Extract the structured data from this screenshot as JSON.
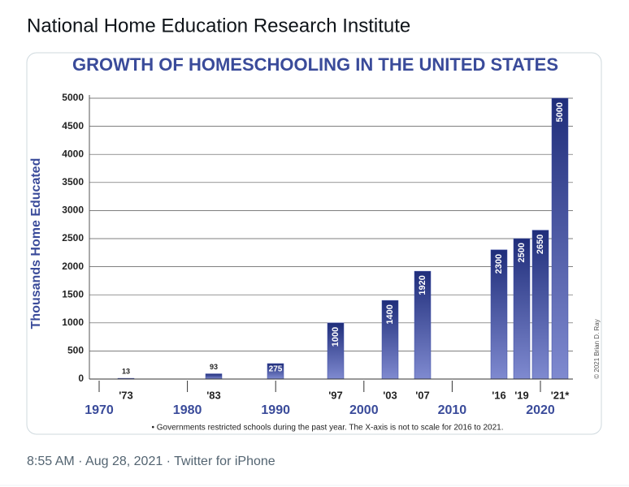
{
  "tweet": {
    "author": "National Home Education Research Institute",
    "timestamp": "8:55 AM · Aug 28, 2021 · Twitter for iPhone"
  },
  "chart_data": {
    "type": "bar",
    "title": "GROWTH OF HOMESCHOOLING IN THE UNITED STATES",
    "y_label": "Thousands Home Educated",
    "categories": [
      "'73",
      "'83",
      null,
      "'97",
      "'03",
      "'07",
      "'16",
      "'19",
      null,
      "'21*"
    ],
    "values": [
      13,
      93,
      275,
      1000,
      1400,
      1920,
      2300,
      2500,
      2650,
      5000
    ],
    "color": "#3d4ca3",
    "ylim": [
      0,
      5000
    ],
    "yticks": [
      0,
      500,
      1000,
      1500,
      2000,
      2500,
      3000,
      3500,
      4000,
      4500,
      5000
    ],
    "xticks": [
      1970,
      1980,
      1990,
      2000,
      2010,
      2020
    ],
    "grid": true,
    "footnote": "• Governments restricted schools during the past year. The X-axis is not to scale for 2016 to 2021.",
    "credit": "© 2021 Brian D. Ray"
  }
}
